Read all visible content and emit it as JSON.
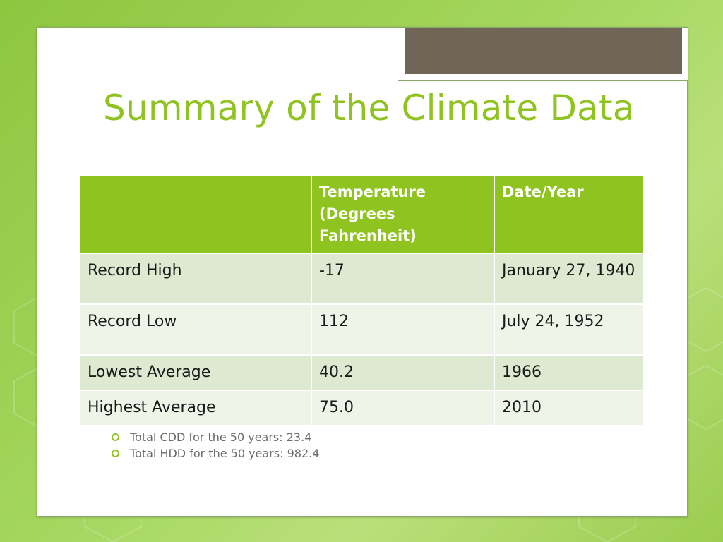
{
  "slide": {
    "title": "Summary of the Climate Data"
  },
  "table": {
    "headers": [
      "",
      "Temperature (Degrees Fahrenheit)",
      "Date/Year"
    ],
    "rows": [
      [
        "Record High",
        "-17",
        "January 27, 1940"
      ],
      [
        "Record Low",
        "112",
        "July 24, 1952"
      ],
      [
        "Lowest Average",
        "40.2",
        "1966"
      ],
      [
        "Highest Average",
        "75.0",
        "2010"
      ]
    ]
  },
  "bullets": [
    "Total CDD for the 50 years: 23.4",
    "Total HDD for the 50 years: 982.4"
  ],
  "colors": {
    "accent": "#8fc31f",
    "header_text": "#ffffff",
    "row_odd": "#dde9d0",
    "row_even": "#eef4e8",
    "tab": "#6f6657"
  }
}
